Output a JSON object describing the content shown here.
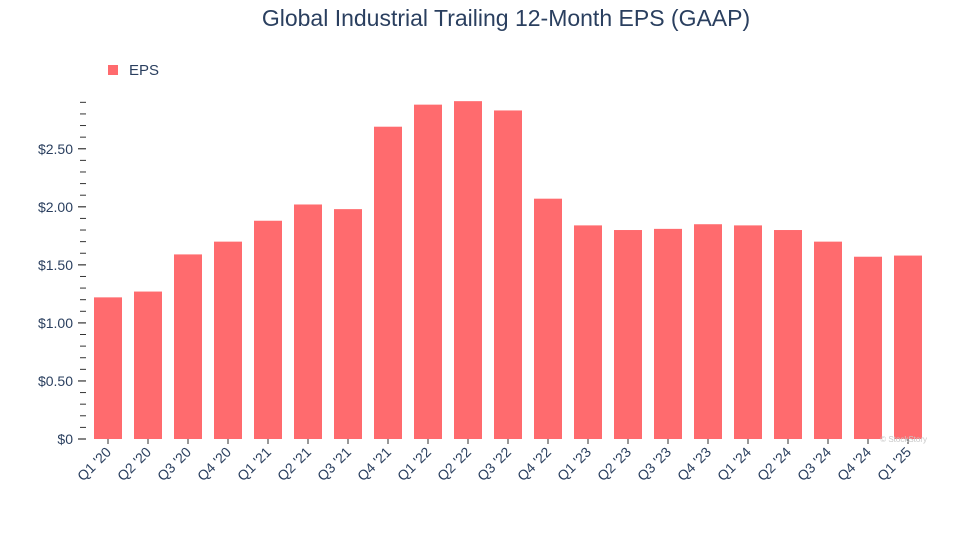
{
  "chart_data": {
    "type": "bar",
    "title": "Global Industrial Trailing 12-Month EPS (GAAP)",
    "xlabel": "",
    "ylabel": "",
    "categories": [
      "Q1 '20",
      "Q2 '20",
      "Q3 '20",
      "Q4 '20",
      "Q1 '21",
      "Q2 '21",
      "Q3 '21",
      "Q4 '21",
      "Q1 '22",
      "Q2 '22",
      "Q3 '22",
      "Q4 '22",
      "Q1 '23",
      "Q2 '23",
      "Q3 '23",
      "Q4 '23",
      "Q1 '24",
      "Q2 '24",
      "Q3 '24",
      "Q4 '24",
      "Q1 '25"
    ],
    "series": [
      {
        "name": "EPS",
        "color": "#ff6b6e",
        "values": [
          1.22,
          1.27,
          1.59,
          1.7,
          1.88,
          2.02,
          1.98,
          2.69,
          2.88,
          2.91,
          2.83,
          2.07,
          1.84,
          1.8,
          1.81,
          1.85,
          1.84,
          1.8,
          1.7,
          1.57,
          1.58
        ]
      }
    ],
    "ylim": [
      0,
      2.92
    ],
    "yticks": [
      0,
      0.5,
      1.0,
      1.5,
      2.0,
      2.5
    ],
    "ytick_labels": [
      "$0",
      "$0.50",
      "$1.00",
      "$1.50",
      "$2.00",
      "$2.50"
    ],
    "legend_position": "top-left",
    "grid": false,
    "watermark": "© StockStory"
  }
}
